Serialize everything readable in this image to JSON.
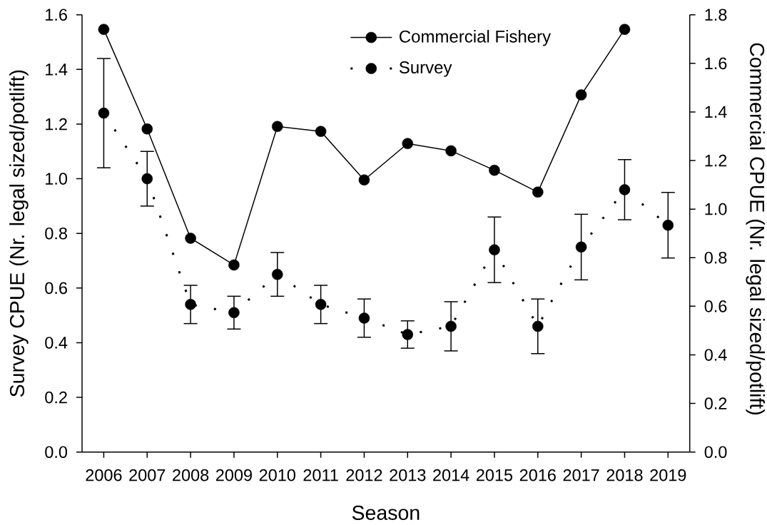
{
  "chart_data": {
    "type": "line",
    "xlabel": "Season",
    "ylabel": "Survey CPUE (Nr. legal sized/potlift)",
    "y2label": "Commercial CPUE (Nr. legal sized/potlift)",
    "categories": [
      "2006",
      "2007",
      "2008",
      "2009",
      "2010",
      "2011",
      "2012",
      "2013",
      "2014",
      "2015",
      "2016",
      "2017",
      "2018",
      "2019"
    ],
    "series": [
      {
        "name": "Commercial Fishery",
        "color": "#000000",
        "axis": "y2",
        "line_style": "solid",
        "values": [
          1.74,
          1.33,
          0.88,
          0.77,
          1.34,
          1.32,
          1.12,
          1.27,
          1.24,
          1.16,
          1.07,
          1.47,
          1.74,
          null
        ]
      },
      {
        "name": "Survey",
        "color": "#000000",
        "axis": "y",
        "line_style": "dotted",
        "values": [
          1.24,
          1.0,
          0.54,
          0.51,
          0.65,
          0.54,
          0.49,
          0.43,
          0.46,
          0.74,
          0.46,
          0.75,
          0.96,
          0.83
        ],
        "errors": [
          [
            1.04,
            1.44
          ],
          [
            0.9,
            1.1
          ],
          [
            0.47,
            0.61
          ],
          [
            0.45,
            0.57
          ],
          [
            0.57,
            0.73
          ],
          [
            0.47,
            0.61
          ],
          [
            0.42,
            0.56
          ],
          [
            0.38,
            0.48
          ],
          [
            0.37,
            0.55
          ],
          [
            0.62,
            0.86
          ],
          [
            0.36,
            0.56
          ],
          [
            0.63,
            0.87
          ],
          [
            0.85,
            1.07
          ],
          [
            0.71,
            0.95
          ]
        ]
      }
    ],
    "ylim": [
      0,
      1.6
    ],
    "yticks": [
      {
        "value": 0,
        "label": "0.0"
      },
      0.2,
      0.4,
      0.6,
      0.8,
      {
        "value": 1,
        "label": "1.0"
      },
      1.2,
      1.4,
      1.6
    ],
    "y2lim": [
      0,
      1.8
    ],
    "y2ticks": [
      {
        "value": 0,
        "label": "0.0"
      },
      0.2,
      0.4,
      0.6,
      0.8,
      {
        "value": 1,
        "label": "1.0"
      },
      1.2,
      1.4,
      1.6,
      1.8
    ],
    "legend": "top",
    "marker": "circle"
  }
}
